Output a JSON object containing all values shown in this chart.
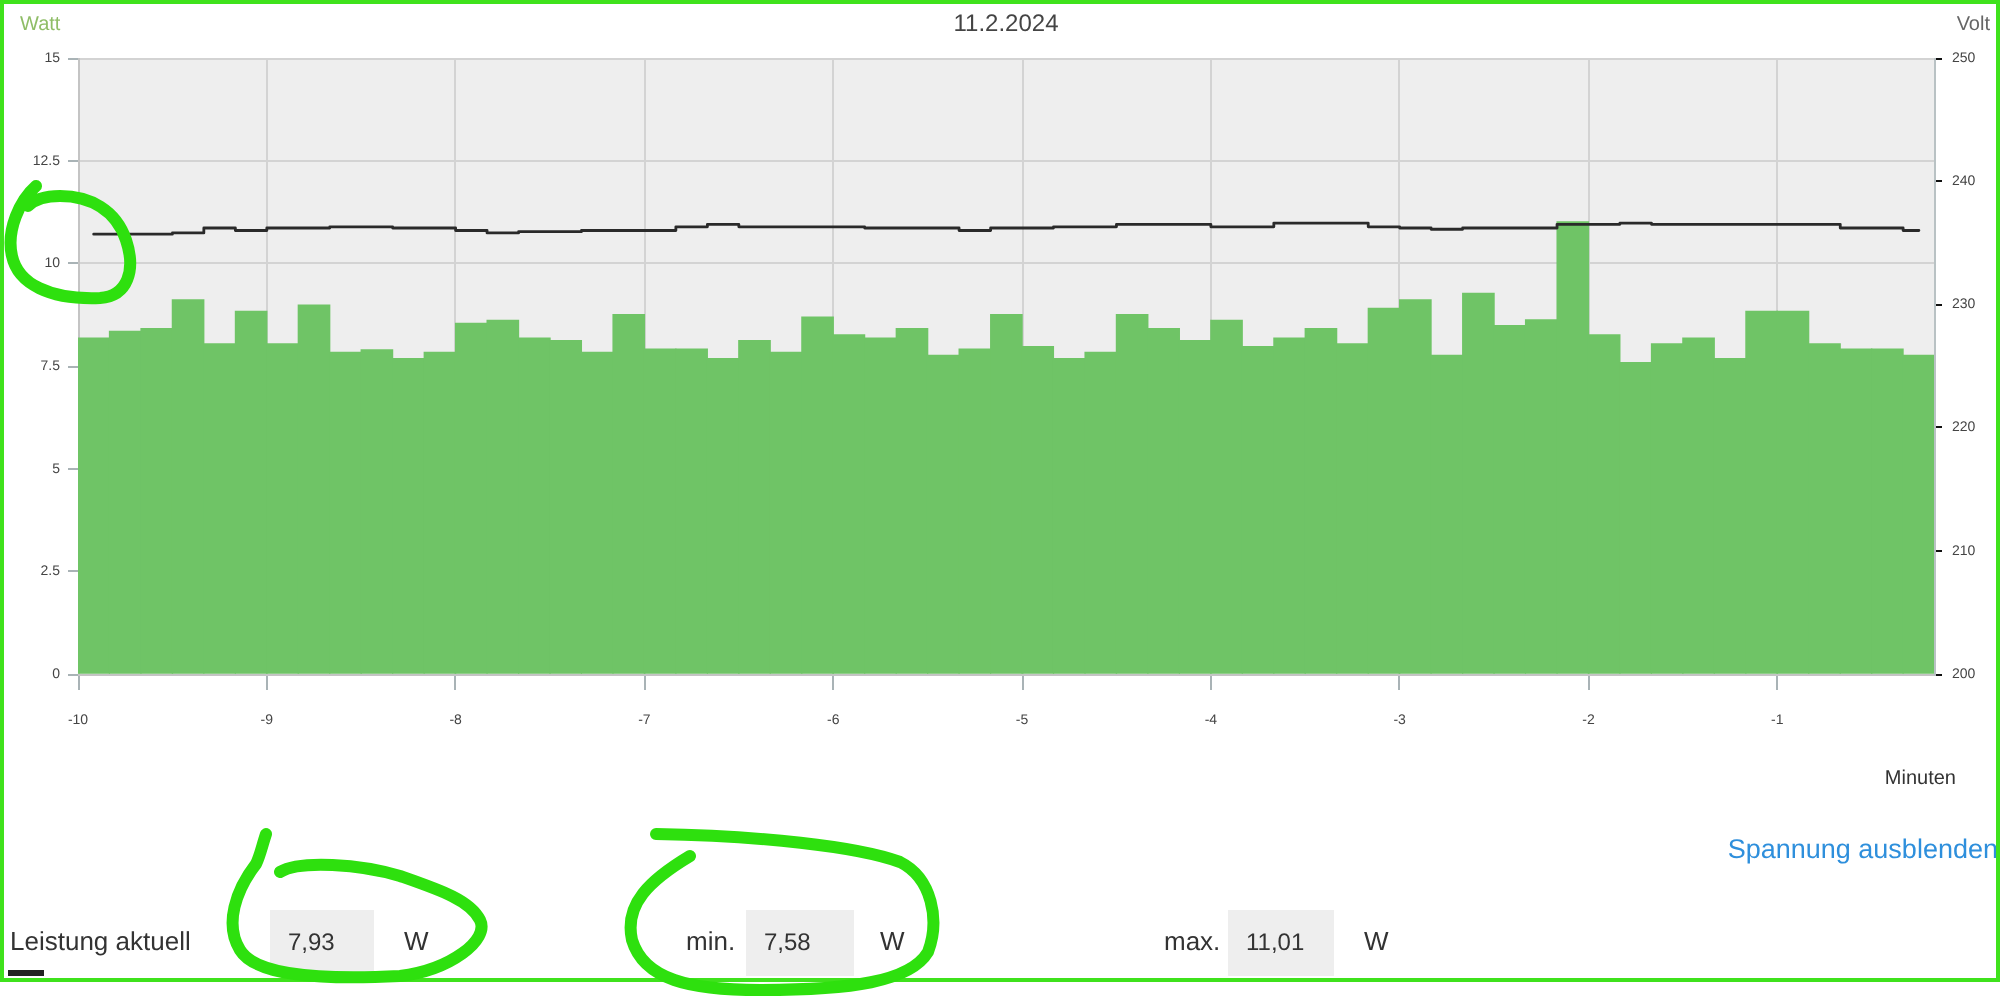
{
  "chart_data": {
    "type": "bar",
    "title": "11.2.2024",
    "xlabel": "Minuten",
    "ylabel": "Watt",
    "y2label": "Volt",
    "x": [
      -9.917,
      -9.75,
      -9.583,
      -9.417,
      -9.25,
      -9.083,
      -8.917,
      -8.75,
      -8.583,
      -8.417,
      -8.25,
      -8.083,
      -7.917,
      -7.75,
      -7.583,
      -7.417,
      -7.25,
      -7.083,
      -6.917,
      -6.75,
      -6.583,
      -6.417,
      -6.25,
      -6.083,
      -5.917,
      -5.75,
      -5.583,
      -5.417,
      -5.25,
      -5.083,
      -4.917,
      -4.75,
      -4.583,
      -4.417,
      -4.25,
      -4.083,
      -3.917,
      -3.75,
      -3.583,
      -3.417,
      -3.25,
      -3.083,
      -2.917,
      -2.75,
      -2.583,
      -2.417,
      -2.25,
      -2.083,
      -1.917,
      -1.75,
      -1.583,
      -1.417,
      -1.25,
      -1.083,
      -0.917,
      -0.75,
      -0.583,
      -0.417,
      -0.25
    ],
    "series": [
      {
        "color": "#6fc466",
        "values": [
          8.18,
          8.34,
          8.41,
          9.11,
          8.04,
          8.83,
          8.04,
          8.98,
          7.83,
          7.89,
          7.68,
          7.83,
          8.54,
          8.61,
          8.18,
          8.12,
          7.83,
          8.75,
          7.91,
          7.91,
          7.68,
          8.12,
          7.83,
          8.69,
          8.26,
          8.18,
          8.41,
          7.76,
          7.91,
          8.75,
          7.97,
          7.68,
          7.83,
          8.75,
          8.41,
          8.12,
          8.61,
          7.97,
          8.18,
          8.41,
          8.04,
          8.9,
          9.11,
          7.76,
          9.27,
          8.48,
          8.62,
          11.01,
          8.26,
          7.58,
          8.04,
          8.18,
          7.68,
          8.83,
          8.83,
          8.04,
          7.91,
          7.91,
          7.76
        ]
      },
      {
        "type": "step",
        "axis": "y2",
        "color": "#2a2a2a",
        "values": [
          235.7,
          235.7,
          235.7,
          235.8,
          236.2,
          236.0,
          236.2,
          236.2,
          236.3,
          236.3,
          236.2,
          236.2,
          236.0,
          235.8,
          235.9,
          235.9,
          236.0,
          236.0,
          236.0,
          236.3,
          236.5,
          236.3,
          236.3,
          236.3,
          236.3,
          236.2,
          236.2,
          236.2,
          236.0,
          236.2,
          236.2,
          236.3,
          236.3,
          236.5,
          236.5,
          236.5,
          236.3,
          236.3,
          236.6,
          236.6,
          236.6,
          236.3,
          236.2,
          236.1,
          236.2,
          236.2,
          236.2,
          236.5,
          236.5,
          236.6,
          236.5,
          236.5,
          236.5,
          236.5,
          236.5,
          236.5,
          236.2,
          236.2,
          236.0
        ]
      }
    ],
    "xlim": [
      -10,
      -0.17
    ],
    "xticks": [
      -10,
      -9,
      -8,
      -7,
      -6,
      -5,
      -4,
      -3,
      -2,
      -1
    ],
    "ylim": [
      0,
      15
    ],
    "yticks": [
      0,
      2.5,
      5,
      7.5,
      10,
      12.5,
      15
    ],
    "y2lim": [
      200,
      250
    ],
    "y2ticks": [
      200,
      210,
      220,
      230,
      240,
      250
    ],
    "grid": true,
    "marker": "none",
    "annotations": [
      "Spannung ausblenden",
      "Leistung aktuell",
      "7,93",
      "W",
      "min.",
      "7,58",
      "W",
      "max.",
      "11,01",
      "W"
    ]
  }
}
